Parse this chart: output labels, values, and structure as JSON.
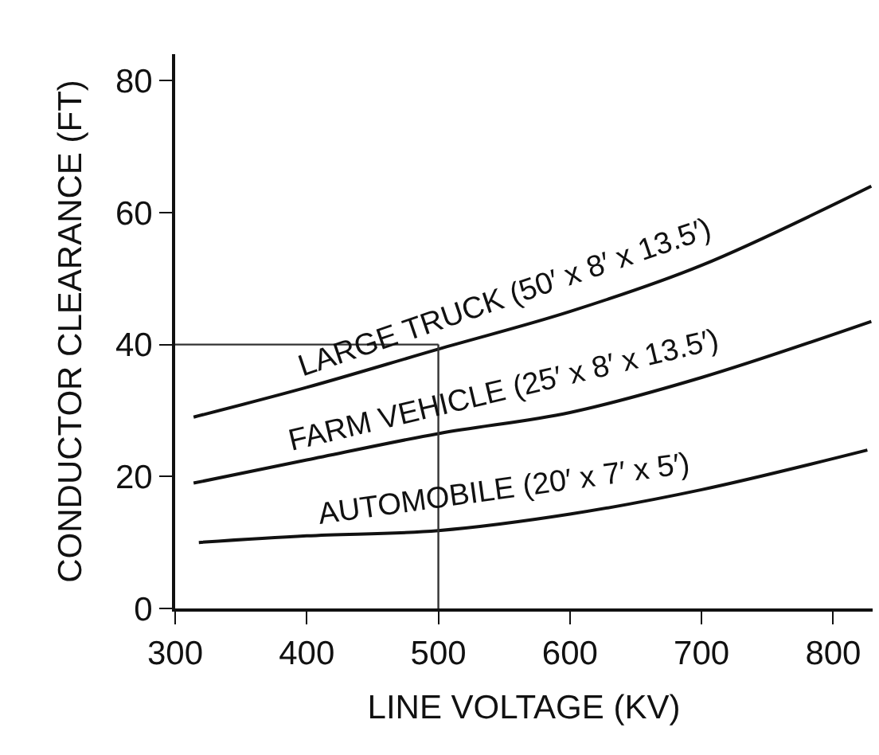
{
  "chart_data": {
    "type": "line",
    "xlabel": "LINE VOLTAGE (KV)",
    "ylabel": "CONDUCTOR CLEARANCE (FT)",
    "xlim": [
      300,
      830
    ],
    "ylim": [
      0,
      84
    ],
    "xticks": [
      300,
      400,
      500,
      600,
      700,
      800
    ],
    "yticks": [
      0,
      20,
      40,
      60,
      80
    ],
    "marker": "none",
    "line_style": "solid",
    "series": [
      {
        "name": "LARGE TRUCK (50′ x 8′ x 13.5′)",
        "color": "#111111",
        "x": [
          314,
          400,
          500,
          600,
          700,
          829
        ],
        "values": [
          29,
          33.5,
          39.3,
          45,
          52,
          64
        ]
      },
      {
        "name": "FARM VEHICLE (25′ x 8′ x 13.5′)",
        "color": "#111111",
        "x": [
          314,
          400,
          500,
          600,
          700,
          829
        ],
        "values": [
          19,
          22.5,
          26.5,
          29.7,
          35,
          43.5
        ]
      },
      {
        "name": "AUTOMOBILE (20′ x 7′ x 5′)",
        "color": "#111111",
        "x": [
          318,
          400,
          500,
          600,
          700,
          826
        ],
        "values": [
          10,
          11,
          11.8,
          14.3,
          18,
          24
        ]
      }
    ],
    "ref_lines": [
      {
        "axis": "y",
        "value": 40,
        "label": null
      },
      {
        "axis": "x",
        "value": 500,
        "label": null
      }
    ]
  }
}
